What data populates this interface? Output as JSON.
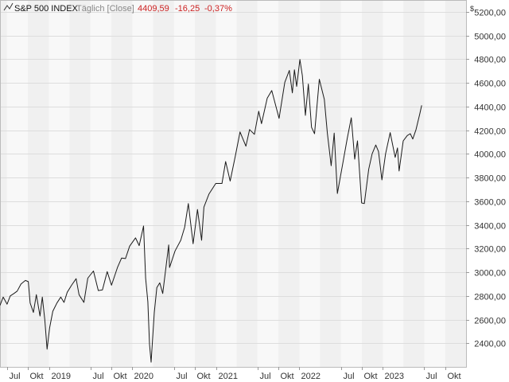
{
  "chart_data": {
    "type": "line",
    "series_name": "S&P 500 INDEX",
    "mode": "Täglich [Close]",
    "last_value": "4409,59",
    "change": "-16,25",
    "change_pct": "-0,37%",
    "currency": "$",
    "ylim": [
      2200,
      5300
    ],
    "y_ticks": [
      {
        "v": 2400,
        "label": "2400,00"
      },
      {
        "v": 2600,
        "label": "2600,00"
      },
      {
        "v": 2800,
        "label": "2800,00"
      },
      {
        "v": 3000,
        "label": "3000,00"
      },
      {
        "v": 3200,
        "label": "3200,00"
      },
      {
        "v": 3400,
        "label": "3400,00"
      },
      {
        "v": 3600,
        "label": "3600,00"
      },
      {
        "v": 3800,
        "label": "3800,00"
      },
      {
        "v": 4000,
        "label": "4000,00"
      },
      {
        "v": 4200,
        "label": "4200,00"
      },
      {
        "v": 4400,
        "label": "4400,00"
      },
      {
        "v": 4600,
        "label": "4600,00"
      },
      {
        "v": 4800,
        "label": "4800,00"
      },
      {
        "v": 5000,
        "label": "5000,00"
      },
      {
        "v": 5200,
        "label": "5200,00"
      }
    ],
    "x_range": [
      "2018-06-01",
      "2023-12-31"
    ],
    "x_ticks": [
      {
        "date": "2018-07-01",
        "label": "Jul"
      },
      {
        "date": "2018-10-01",
        "label": "Okt"
      },
      {
        "date": "2019-01-01",
        "label": "2019"
      },
      {
        "date": "2019-07-01",
        "label": "Jul"
      },
      {
        "date": "2019-10-01",
        "label": "Okt"
      },
      {
        "date": "2020-01-01",
        "label": "2020"
      },
      {
        "date": "2020-07-01",
        "label": "Jul"
      },
      {
        "date": "2020-10-01",
        "label": "Okt"
      },
      {
        "date": "2021-01-01",
        "label": "2021"
      },
      {
        "date": "2021-07-01",
        "label": "Jul"
      },
      {
        "date": "2021-10-01",
        "label": "Okt"
      },
      {
        "date": "2022-01-01",
        "label": "2022"
      },
      {
        "date": "2022-07-01",
        "label": "Jul"
      },
      {
        "date": "2022-10-01",
        "label": "Okt"
      },
      {
        "date": "2023-01-01",
        "label": "2023"
      },
      {
        "date": "2023-07-01",
        "label": "Jul"
      },
      {
        "date": "2023-10-01",
        "label": "Okt"
      }
    ],
    "grid": true,
    "colors": {
      "line": "#1a1a1a",
      "negative": "#cc2222",
      "band": "#f0f0f0",
      "plot_bg": "#f8f8f8",
      "grid": "#dddddd"
    },
    "points": [
      [
        "2018-06-01",
        2720
      ],
      [
        "2018-06-15",
        2790
      ],
      [
        "2018-07-02",
        2730
      ],
      [
        "2018-07-16",
        2800
      ],
      [
        "2018-08-01",
        2820
      ],
      [
        "2018-08-15",
        2840
      ],
      [
        "2018-09-01",
        2900
      ],
      [
        "2018-09-20",
        2930
      ],
      [
        "2018-10-03",
        2920
      ],
      [
        "2018-10-11",
        2740
      ],
      [
        "2018-10-25",
        2660
      ],
      [
        "2018-11-07",
        2810
      ],
      [
        "2018-11-23",
        2630
      ],
      [
        "2018-12-03",
        2790
      ],
      [
        "2018-12-14",
        2600
      ],
      [
        "2018-12-24",
        2350
      ],
      [
        "2019-01-04",
        2530
      ],
      [
        "2019-01-18",
        2670
      ],
      [
        "2019-02-05",
        2740
      ],
      [
        "2019-02-22",
        2790
      ],
      [
        "2019-03-08",
        2745
      ],
      [
        "2019-03-22",
        2830
      ],
      [
        "2019-04-10",
        2890
      ],
      [
        "2019-04-30",
        2945
      ],
      [
        "2019-05-13",
        2810
      ],
      [
        "2019-06-03",
        2745
      ],
      [
        "2019-06-20",
        2950
      ],
      [
        "2019-07-15",
        3010
      ],
      [
        "2019-08-05",
        2845
      ],
      [
        "2019-08-23",
        2850
      ],
      [
        "2019-09-13",
        3005
      ],
      [
        "2019-10-02",
        2890
      ],
      [
        "2019-10-28",
        3040
      ],
      [
        "2019-11-15",
        3120
      ],
      [
        "2019-12-02",
        3115
      ],
      [
        "2019-12-20",
        3220
      ],
      [
        "2020-01-15",
        3290
      ],
      [
        "2020-01-31",
        3225
      ],
      [
        "2020-02-19",
        3390
      ],
      [
        "2020-02-28",
        2950
      ],
      [
        "2020-03-09",
        2750
      ],
      [
        "2020-03-16",
        2390
      ],
      [
        "2020-03-23",
        2240
      ],
      [
        "2020-04-06",
        2660
      ],
      [
        "2020-04-17",
        2870
      ],
      [
        "2020-04-30",
        2910
      ],
      [
        "2020-05-13",
        2820
      ],
      [
        "2020-06-08",
        3230
      ],
      [
        "2020-06-12",
        3040
      ],
      [
        "2020-07-06",
        3180
      ],
      [
        "2020-07-31",
        3270
      ],
      [
        "2020-08-17",
        3380
      ],
      [
        "2020-09-02",
        3580
      ],
      [
        "2020-09-23",
        3240
      ],
      [
        "2020-10-12",
        3530
      ],
      [
        "2020-10-30",
        3270
      ],
      [
        "2020-11-09",
        3550
      ],
      [
        "2020-12-01",
        3660
      ],
      [
        "2020-12-31",
        3750
      ],
      [
        "2021-01-27",
        3750
      ],
      [
        "2021-02-12",
        3935
      ],
      [
        "2021-03-04",
        3770
      ],
      [
        "2021-03-26",
        3975
      ],
      [
        "2021-04-16",
        4185
      ],
      [
        "2021-05-12",
        4065
      ],
      [
        "2021-05-28",
        4205
      ],
      [
        "2021-06-18",
        4165
      ],
      [
        "2021-07-07",
        4360
      ],
      [
        "2021-07-19",
        4255
      ],
      [
        "2021-08-13",
        4470
      ],
      [
        "2021-09-02",
        4535
      ],
      [
        "2021-10-04",
        4300
      ],
      [
        "2021-10-29",
        4605
      ],
      [
        "2021-11-18",
        4705
      ],
      [
        "2021-12-01",
        4515
      ],
      [
        "2021-12-10",
        4710
      ],
      [
        "2021-12-20",
        4570
      ],
      [
        "2022-01-03",
        4797
      ],
      [
        "2022-01-14",
        4660
      ],
      [
        "2022-01-27",
        4325
      ],
      [
        "2022-02-09",
        4590
      ],
      [
        "2022-02-23",
        4225
      ],
      [
        "2022-03-08",
        4170
      ],
      [
        "2022-03-29",
        4630
      ],
      [
        "2022-04-20",
        4460
      ],
      [
        "2022-05-03",
        4175
      ],
      [
        "2022-05-20",
        3900
      ],
      [
        "2022-06-02",
        4175
      ],
      [
        "2022-06-16",
        3665
      ],
      [
        "2022-07-08",
        3900
      ],
      [
        "2022-07-29",
        4130
      ],
      [
        "2022-08-16",
        4305
      ],
      [
        "2022-08-31",
        3955
      ],
      [
        "2022-09-12",
        4110
      ],
      [
        "2022-09-30",
        3585
      ],
      [
        "2022-10-12",
        3580
      ],
      [
        "2022-10-31",
        3870
      ],
      [
        "2022-11-15",
        4000
      ],
      [
        "2022-12-01",
        4075
      ],
      [
        "2022-12-13",
        4020
      ],
      [
        "2022-12-28",
        3780
      ],
      [
        "2023-01-13",
        4000
      ],
      [
        "2023-02-02",
        4180
      ],
      [
        "2023-02-24",
        3970
      ],
      [
        "2023-03-06",
        4050
      ],
      [
        "2023-03-13",
        3855
      ],
      [
        "2023-03-31",
        4110
      ],
      [
        "2023-04-18",
        4155
      ],
      [
        "2023-05-01",
        4170
      ],
      [
        "2023-05-12",
        4125
      ],
      [
        "2023-05-26",
        4205
      ],
      [
        "2023-06-12",
        4340
      ],
      [
        "2023-06-20",
        4410
      ]
    ]
  }
}
